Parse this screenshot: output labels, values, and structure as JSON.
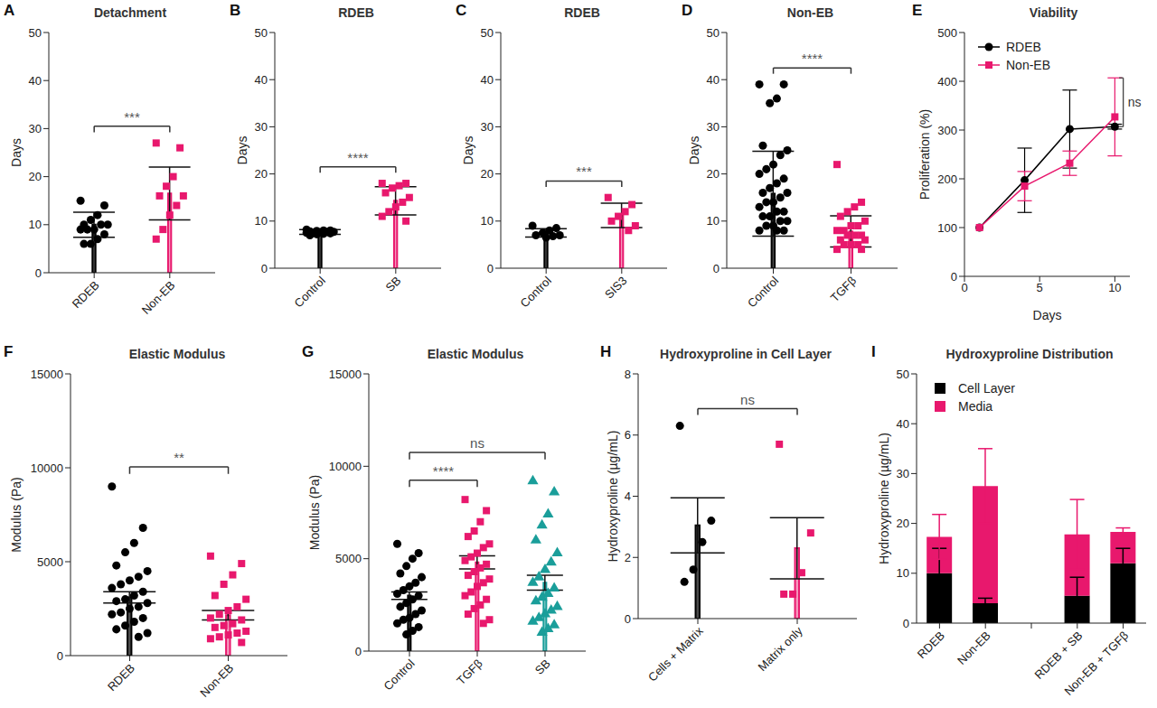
{
  "chart_data": [
    {
      "panel_label": "A",
      "type": "bar",
      "title": "Detachment",
      "y_label": "Days",
      "categories": [
        "RDEB",
        "Non-EB"
      ],
      "values": [
        10,
        16.5
      ],
      "errors": [
        2.6,
        5.5
      ],
      "points": [
        [
          15,
          14,
          12,
          11,
          10,
          10,
          10,
          9,
          9,
          9,
          8,
          7,
          6,
          6
        ],
        [
          27,
          26,
          20,
          18,
          16,
          16,
          14,
          12,
          9,
          7
        ]
      ],
      "colors": [
        "#000000",
        "#e8186d"
      ],
      "ylim": [
        0,
        50
      ],
      "yticks": [
        0,
        10,
        20,
        30,
        40,
        50
      ],
      "annotations": [
        {
          "text": "***",
          "between": [
            "RDEB",
            "Non-EB"
          ]
        }
      ]
    },
    {
      "panel_label": "B",
      "type": "bar",
      "title": "RDEB",
      "y_label": "Days",
      "categories": [
        "Control",
        "SB"
      ],
      "values": [
        7.7,
        14.3
      ],
      "errors": [
        0.5,
        3
      ],
      "points": [
        [
          8.2,
          8,
          8,
          7.9,
          7.8,
          7.7,
          7.7,
          7.6,
          7.5,
          7.5,
          7.4,
          7.3,
          7.2,
          7
        ],
        [
          18,
          18,
          17.5,
          17,
          16,
          15,
          14,
          13,
          12,
          11,
          10
        ]
      ],
      "colors": [
        "#000000",
        "#e8186d"
      ],
      "ylim": [
        0,
        50
      ],
      "yticks": [
        0,
        10,
        20,
        30,
        40,
        50
      ],
      "annotations": [
        {
          "text": "****",
          "between": [
            "Control",
            "SB"
          ]
        }
      ]
    },
    {
      "panel_label": "C",
      "type": "bar",
      "title": "RDEB",
      "y_label": "Days",
      "categories": [
        "Control",
        "SIS3"
      ],
      "values": [
        7.5,
        11.2
      ],
      "errors": [
        0.9,
        2.6
      ],
      "points": [
        [
          9,
          8.5,
          8,
          7.5,
          7,
          7,
          6.8,
          6.5
        ],
        [
          15,
          13.5,
          12,
          11,
          10,
          9,
          8
        ]
      ],
      "colors": [
        "#000000",
        "#e8186d"
      ],
      "ylim": [
        0,
        50
      ],
      "yticks": [
        0,
        10,
        20,
        30,
        40,
        50
      ],
      "annotations": [
        {
          "text": "***",
          "between": [
            "Control",
            "SIS3"
          ]
        }
      ]
    },
    {
      "panel_label": "D",
      "type": "bar",
      "title": "Non-EB",
      "y_label": "Days",
      "categories": [
        "Control",
        "TGFβ"
      ],
      "values": [
        15.8,
        7.8
      ],
      "errors": [
        9,
        3.3
      ],
      "points": [
        [
          39,
          39,
          36,
          35,
          26,
          25,
          24,
          22,
          21,
          20,
          19,
          18,
          17,
          16,
          16,
          15,
          14,
          14,
          13,
          12,
          12,
          11,
          11,
          10,
          10,
          9,
          9,
          8,
          8,
          8
        ],
        [
          22,
          14,
          13,
          12,
          11,
          10,
          9,
          9,
          8,
          8,
          7,
          7,
          7,
          6,
          6,
          5,
          5,
          5,
          4,
          4
        ]
      ],
      "colors": [
        "#000000",
        "#e8186d"
      ],
      "ylim": [
        0,
        50
      ],
      "yticks": [
        0,
        10,
        20,
        30,
        40,
        50
      ],
      "annotations": [
        {
          "text": "****",
          "between": [
            "Control",
            "TGFβ"
          ]
        }
      ]
    },
    {
      "panel_label": "E",
      "type": "line",
      "title": "Viability",
      "x_label": "Days",
      "y_label": "Proliferation (%)",
      "x": [
        1,
        4,
        7,
        10
      ],
      "series": [
        {
          "name": "RDEB",
          "color": "#000000",
          "marker": "circle",
          "values": [
            100,
            197,
            302,
            307
          ],
          "errors": [
            0,
            66,
            80,
            5
          ]
        },
        {
          "name": "Non-EB",
          "color": "#e8186d",
          "marker": "square",
          "values": [
            100,
            185,
            232,
            327
          ],
          "errors": [
            0,
            30,
            25,
            80
          ]
        }
      ],
      "xlim": [
        0,
        11
      ],
      "xticks": [
        0,
        5,
        10
      ],
      "ylim": [
        0,
        500
      ],
      "yticks": [
        0,
        100,
        200,
        300,
        400,
        500
      ],
      "legend": "upper left",
      "annotations": [
        {
          "text": "ns",
          "between": [
            "RDEB",
            "Non-EB"
          ]
        }
      ]
    },
    {
      "panel_label": "F",
      "type": "bar",
      "title": "Elastic Modulus",
      "y_label": "Modulus (Pa)",
      "categories": [
        "RDEB",
        "Non-EB"
      ],
      "values": [
        3100,
        2150
      ],
      "errors": [
        300,
        250
      ],
      "points": [
        [
          9000,
          6800,
          6000,
          5500,
          4800,
          4500,
          4200,
          4000,
          3800,
          3600,
          3400,
          3200,
          3000,
          2900,
          2800,
          2600,
          2500,
          2300,
          2200,
          2000,
          1800,
          1600,
          1400,
          1200,
          1000
        ],
        [
          5300,
          4900,
          4300,
          3800,
          3200,
          3000,
          2600,
          2400,
          2200,
          2000,
          1900,
          1700,
          1600,
          1500,
          1300,
          1200,
          1100,
          1000,
          900,
          700
        ]
      ],
      "colors": [
        "#000000",
        "#e8186d"
      ],
      "ylim": [
        0,
        15000
      ],
      "yticks": [
        0,
        5000,
        10000,
        15000
      ],
      "annotations": [
        {
          "text": "**",
          "between": [
            "RDEB",
            "Non-EB"
          ]
        }
      ]
    },
    {
      "panel_label": "G",
      "type": "bar",
      "title": "Elastic Modulus",
      "y_label": "Modulus (Pa)",
      "categories": [
        "Control",
        "TGFβ",
        "SB"
      ],
      "values": [
        3000,
        4800,
        3700
      ],
      "errors": [
        200,
        350,
        400
      ],
      "points": [
        [
          5800,
          5300,
          5000,
          4600,
          4200,
          4000,
          3700,
          3500,
          3300,
          3100,
          3000,
          2800,
          2600,
          2400,
          2200,
          2000,
          1800,
          1700,
          1500,
          1300,
          1100,
          900
        ],
        [
          8200,
          7600,
          7000,
          6500,
          6200,
          5800,
          5600,
          5300,
          5100,
          4900,
          4700,
          4500,
          4300,
          4100,
          3900,
          3700,
          3500,
          3200,
          3000,
          2800,
          2500,
          2300,
          2000,
          1700,
          1500
        ],
        [
          9200,
          8600,
          7400,
          6800,
          6000,
          5300,
          4800,
          4400,
          4000,
          3700,
          3400,
          3100,
          2900,
          2700,
          2400,
          2200,
          2000,
          1800,
          1600,
          1400,
          1200,
          1000
        ]
      ],
      "colors": [
        "#000000",
        "#e8186d",
        "#1a9e9a"
      ],
      "ylim": [
        0,
        15000
      ],
      "yticks": [
        0,
        5000,
        10000,
        15000
      ],
      "annotations": [
        {
          "text": "****",
          "between": [
            "Control",
            "TGFβ"
          ]
        },
        {
          "text": "ns",
          "between": [
            "Control",
            "SB"
          ]
        }
      ]
    },
    {
      "panel_label": "H",
      "type": "bar",
      "title": "Hydroxyproline in Cell Layer",
      "y_label": "Hydroxyproline (µg/mL)",
      "categories": [
        "Cells + Matrix",
        "Matrix only"
      ],
      "values": [
        3.05,
        2.3
      ],
      "errors": [
        0.9,
        1.0
      ],
      "points": [
        [
          6.3,
          3.2,
          2.5,
          1.6,
          1.2
        ],
        [
          5.7,
          2.8,
          1.5,
          0.8,
          0.8
        ]
      ],
      "colors": [
        "#000000",
        "#e8186d"
      ],
      "ylim": [
        0,
        8
      ],
      "yticks": [
        0,
        2,
        4,
        6,
        8
      ],
      "annotations": [
        {
          "text": "ns",
          "between": [
            "Cells + Matrix",
            "Matrix only"
          ]
        }
      ]
    },
    {
      "panel_label": "I",
      "type": "bar",
      "stacked": true,
      "title": "Hydroxyproline Distribution",
      "y_label": "Hydroxyproline (µg/mL)",
      "categories": [
        "RDEB",
        "Non-EB",
        null,
        "RDEB + SB",
        "Non-EB + TGFβ"
      ],
      "series": [
        {
          "name": "Cell Layer",
          "color": "#000000",
          "values": [
            10,
            4,
            null,
            5.5,
            12
          ],
          "errors": [
            5,
            1,
            null,
            3.7,
            3
          ]
        },
        {
          "name": "Media",
          "color": "#e8186d",
          "values": [
            7.3,
            23.5,
            null,
            12.3,
            6.3
          ],
          "errors": [
            4.5,
            7.5,
            null,
            7,
            0.8
          ]
        }
      ],
      "ylim": [
        0,
        50
      ],
      "yticks": [
        0,
        10,
        20,
        30,
        40,
        50
      ],
      "legend": "upper left"
    }
  ]
}
